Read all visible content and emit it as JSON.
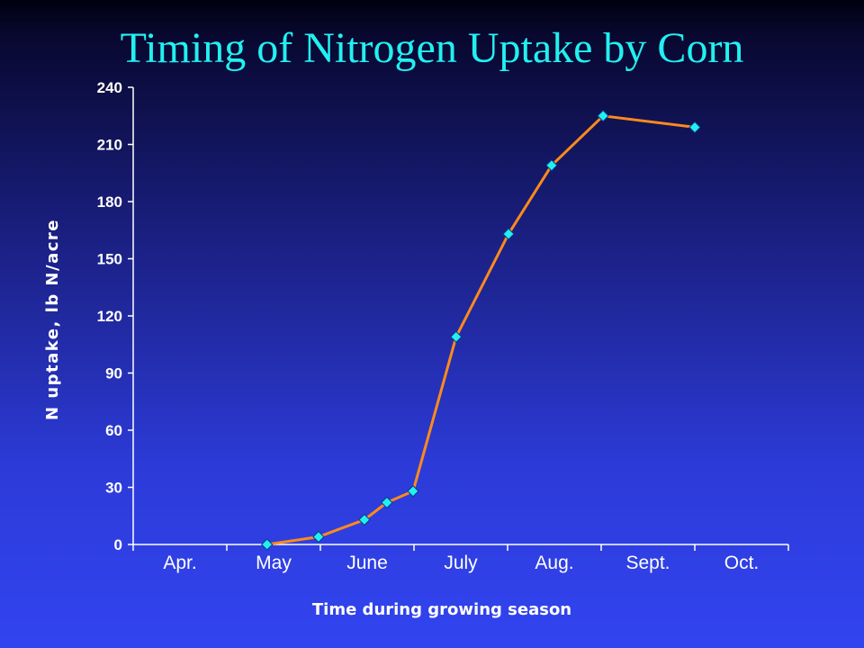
{
  "chart_data": {
    "type": "line",
    "title": "Timing of Nitrogen Uptake by Corn",
    "xlabel": "Time during growing season",
    "ylabel": "N uptake, lb N/acre",
    "categories": [
      "Apr.",
      "May",
      "June",
      "July",
      "Aug.",
      "Sept.",
      "Oct."
    ],
    "ylim": [
      0,
      240
    ],
    "yticks": [
      0,
      30,
      60,
      90,
      120,
      150,
      180,
      210,
      240
    ],
    "grid": false,
    "legend": "none",
    "series": [
      {
        "x": [
          1.43,
          1.98,
          2.47,
          2.71,
          2.99,
          3.45,
          4.01,
          4.47,
          5.02,
          6.0
        ],
        "y": [
          0,
          4,
          13,
          22,
          28,
          109,
          163,
          199,
          225,
          219
        ],
        "line_color": "#ff8a1c",
        "marker_color": "#22f0f0"
      }
    ]
  }
}
